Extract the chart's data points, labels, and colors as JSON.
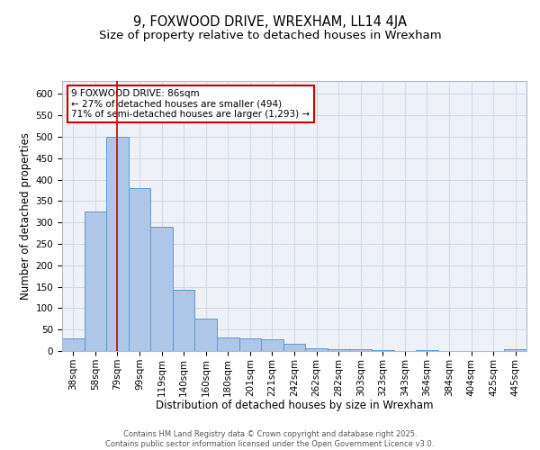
{
  "title_line1": "9, FOXWOOD DRIVE, WREXHAM, LL14 4JA",
  "title_line2": "Size of property relative to detached houses in Wrexham",
  "xlabel": "Distribution of detached houses by size in Wrexham",
  "ylabel": "Number of detached properties",
  "bar_labels": [
    "38sqm",
    "58sqm",
    "79sqm",
    "99sqm",
    "119sqm",
    "140sqm",
    "160sqm",
    "180sqm",
    "201sqm",
    "221sqm",
    "242sqm",
    "262sqm",
    "282sqm",
    "303sqm",
    "323sqm",
    "343sqm",
    "364sqm",
    "384sqm",
    "404sqm",
    "425sqm",
    "445sqm"
  ],
  "bar_values": [
    30,
    325,
    500,
    380,
    290,
    143,
    75,
    32,
    30,
    28,
    16,
    7,
    4,
    4,
    2,
    1,
    3,
    1,
    1,
    1,
    5
  ],
  "bar_color": "#aec6e8",
  "bar_edge_color": "#5b9bd5",
  "red_line_x": 2.0,
  "annotation_text": "9 FOXWOOD DRIVE: 86sqm\n← 27% of detached houses are smaller (494)\n71% of semi-detached houses are larger (1,293) →",
  "annotation_box_color": "#ffffff",
  "annotation_box_edge_color": "#cc0000",
  "ylim": [
    0,
    630
  ],
  "yticks": [
    0,
    50,
    100,
    150,
    200,
    250,
    300,
    350,
    400,
    450,
    500,
    550,
    600
  ],
  "grid_color": "#d0d8e8",
  "bg_color": "#eef2f8",
  "footer_text": "Contains HM Land Registry data © Crown copyright and database right 2025.\nContains public sector information licensed under the Open Government Licence v3.0.",
  "title_fontsize": 10.5,
  "subtitle_fontsize": 9.5,
  "axis_label_fontsize": 8.5,
  "tick_fontsize": 7.5,
  "annotation_fontsize": 7.5,
  "footer_fontsize": 6.0
}
